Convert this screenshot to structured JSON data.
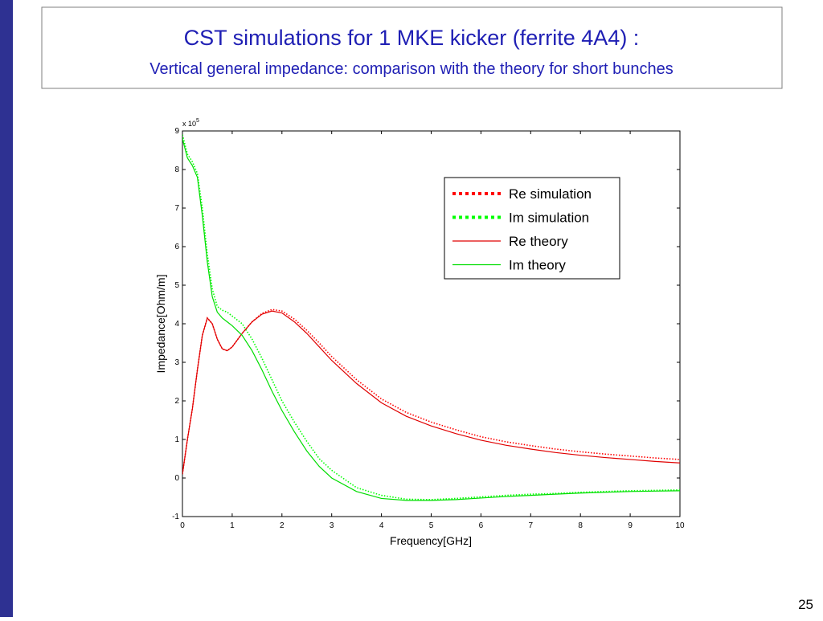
{
  "slide": {
    "title": "CST simulations for 1 MKE kicker (ferrite 4A4) :",
    "subtitle": "Vertical general impedance: comparison with the theory for short bunches",
    "page_number": "25"
  },
  "chart_data": {
    "type": "line",
    "xlabel": "Frequency[GHz]",
    "ylabel": "Impedance[Ohm/m]",
    "y_multiplier": {
      "base": "x 10",
      "exponent": "5"
    },
    "x": [
      0,
      0.1,
      0.2,
      0.3,
      0.4,
      0.5,
      0.6,
      0.7,
      0.8,
      0.9,
      1,
      1.2,
      1.4,
      1.6,
      1.8,
      2,
      2.25,
      2.5,
      2.75,
      3,
      3.5,
      4,
      4.5,
      5,
      5.5,
      6,
      6.5,
      7,
      7.5,
      8,
      8.5,
      9,
      9.5,
      10
    ],
    "series": [
      {
        "name": "Re simulation",
        "color": "#ff0000",
        "line_style": "dotted",
        "values": [
          0.1,
          1.0,
          1.8,
          2.8,
          3.7,
          4.15,
          4.0,
          3.6,
          3.35,
          3.3,
          3.4,
          3.75,
          4.05,
          4.27,
          4.37,
          4.33,
          4.12,
          3.83,
          3.5,
          3.15,
          2.55,
          2.05,
          1.7,
          1.45,
          1.25,
          1.07,
          0.94,
          0.84,
          0.75,
          0.68,
          0.62,
          0.57,
          0.52,
          0.48
        ]
      },
      {
        "name": "Im simulation",
        "color": "#00ff00",
        "line_style": "dotted",
        "values": [
          8.9,
          8.4,
          8.2,
          7.9,
          7.0,
          5.8,
          4.9,
          4.45,
          4.35,
          4.3,
          4.2,
          4.0,
          3.6,
          3.1,
          2.55,
          2.0,
          1.45,
          0.95,
          0.5,
          0.2,
          -0.25,
          -0.45,
          -0.55,
          -0.56,
          -0.53,
          -0.49,
          -0.45,
          -0.42,
          -0.4,
          -0.37,
          -0.35,
          -0.33,
          -0.32,
          -0.31
        ]
      },
      {
        "name": "Re theory",
        "color": "#e00000",
        "line_style": "solid",
        "values": [
          0.1,
          1.0,
          1.8,
          2.8,
          3.7,
          4.15,
          4.0,
          3.6,
          3.35,
          3.3,
          3.4,
          3.75,
          4.05,
          4.25,
          4.33,
          4.28,
          4.05,
          3.75,
          3.4,
          3.05,
          2.45,
          1.95,
          1.6,
          1.35,
          1.15,
          0.98,
          0.85,
          0.75,
          0.66,
          0.59,
          0.53,
          0.48,
          0.43,
          0.39
        ]
      },
      {
        "name": "Im theory",
        "color": "#00dd00",
        "line_style": "solid",
        "values": [
          8.8,
          8.3,
          8.1,
          7.8,
          6.8,
          5.6,
          4.7,
          4.3,
          4.15,
          4.05,
          3.95,
          3.7,
          3.3,
          2.8,
          2.25,
          1.75,
          1.2,
          0.7,
          0.3,
          0.0,
          -0.35,
          -0.53,
          -0.58,
          -0.58,
          -0.56,
          -0.52,
          -0.48,
          -0.45,
          -0.42,
          -0.39,
          -0.37,
          -0.35,
          -0.34,
          -0.33
        ]
      }
    ],
    "xlim": [
      0,
      10
    ],
    "xticks": [
      0,
      1,
      2,
      3,
      4,
      5,
      6,
      7,
      8,
      9,
      10
    ],
    "ylim": [
      -1,
      9
    ],
    "yticks": [
      -1,
      0,
      1,
      2,
      3,
      4,
      5,
      6,
      7,
      8,
      9
    ],
    "legend": "upper right"
  }
}
